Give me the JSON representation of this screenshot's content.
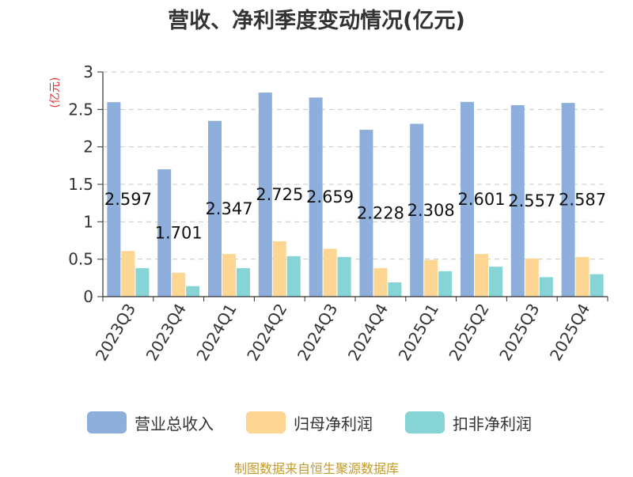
{
  "chart_data": {
    "type": "bar",
    "title": "营收、净利季度变动情况(亿元)",
    "ylabel": "(亿元)",
    "xlabel": "",
    "ylim": [
      0,
      3
    ],
    "yticks": [
      "0",
      "0.5",
      "1",
      "1.5",
      "2",
      "2.5",
      "3"
    ],
    "grid": true,
    "legend_position": "bottom",
    "categories": [
      "2023Q3",
      "2023Q4",
      "2024Q1",
      "2024Q2",
      "2024Q3",
      "2024Q4",
      "2025Q1",
      "2025Q2",
      "2025Q3",
      "2025Q4"
    ],
    "series": [
      {
        "name": "营业总收入",
        "color": "#8eaedc",
        "values": [
          2.597,
          1.701,
          2.347,
          2.725,
          2.659,
          2.228,
          2.308,
          2.601,
          2.557,
          2.587
        ],
        "labels": [
          "2.597",
          "1.701",
          "2.347",
          "2.725",
          "2.659",
          "2.228",
          "2.308",
          "2.601",
          "2.557",
          "2.587"
        ]
      },
      {
        "name": "归母净利润",
        "color": "#fdd694",
        "values": [
          0.61,
          0.32,
          0.57,
          0.74,
          0.64,
          0.38,
          0.49,
          0.57,
          0.51,
          0.53
        ]
      },
      {
        "name": "扣非净利润",
        "color": "#86d4d6",
        "values": [
          0.38,
          0.14,
          0.38,
          0.54,
          0.53,
          0.19,
          0.34,
          0.4,
          0.26,
          0.3
        ]
      }
    ]
  },
  "source": "制图数据来自恒生聚源数据库"
}
